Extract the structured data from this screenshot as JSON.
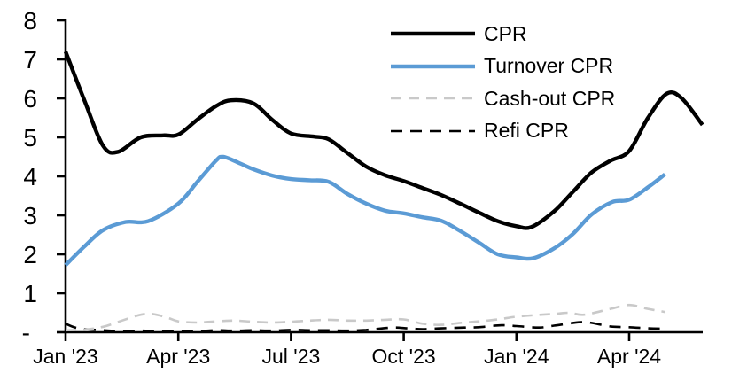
{
  "chart_data": {
    "type": "line",
    "title": "",
    "background": "#ffffff",
    "grid": "off",
    "y_axis": {
      "min": 0,
      "max": 8,
      "tick_step": 1,
      "tick_labels_top_to_bottom": [
        "8",
        "7",
        "6",
        "5",
        "4",
        "3",
        "2",
        "1",
        "-"
      ],
      "zero_label": "-"
    },
    "x_axis": {
      "unit": "month",
      "tick_labels": [
        "Jan '23",
        "Apr '23",
        "Jul '23",
        "Oct '23",
        "Jan '24",
        "Apr '24"
      ],
      "tick_month_indices": [
        0,
        3,
        6,
        9,
        12,
        15
      ]
    },
    "legend": {
      "position": "top-right",
      "entries": [
        "CPR",
        "Turnover CPR",
        "Cash-out CPR",
        "Refi CPR"
      ]
    },
    "series": [
      {
        "name": "CPR",
        "color": "#000000",
        "line_style": "solid",
        "points": [
          [
            0,
            7.2
          ],
          [
            0.5,
            5.95
          ],
          [
            1,
            4.78
          ],
          [
            1.4,
            4.63
          ],
          [
            2,
            5.0
          ],
          [
            2.6,
            5.05
          ],
          [
            3,
            5.07
          ],
          [
            3.5,
            5.45
          ],
          [
            4,
            5.8
          ],
          [
            4.4,
            5.95
          ],
          [
            5,
            5.87
          ],
          [
            5.5,
            5.45
          ],
          [
            6,
            5.1
          ],
          [
            6.6,
            5.02
          ],
          [
            7,
            4.95
          ],
          [
            7.5,
            4.6
          ],
          [
            8,
            4.25
          ],
          [
            8.5,
            4.03
          ],
          [
            9,
            3.88
          ],
          [
            9.5,
            3.7
          ],
          [
            10,
            3.52
          ],
          [
            10.5,
            3.3
          ],
          [
            11,
            3.07
          ],
          [
            11.5,
            2.85
          ],
          [
            12,
            2.72
          ],
          [
            12.4,
            2.7
          ],
          [
            13,
            3.1
          ],
          [
            13.5,
            3.6
          ],
          [
            14,
            4.1
          ],
          [
            14.5,
            4.4
          ],
          [
            15,
            4.65
          ],
          [
            15.5,
            5.5
          ],
          [
            16,
            6.12
          ],
          [
            16.4,
            6.0
          ],
          [
            16.95,
            5.32
          ]
        ]
      },
      {
        "name": "Turnover CPR",
        "color": "#5b9bd5",
        "line_style": "solid",
        "points": [
          [
            0,
            1.72
          ],
          [
            0.5,
            2.2
          ],
          [
            1,
            2.62
          ],
          [
            1.6,
            2.83
          ],
          [
            2.2,
            2.85
          ],
          [
            3,
            3.3
          ],
          [
            3.5,
            3.85
          ],
          [
            4,
            4.4
          ],
          [
            4.2,
            4.5
          ],
          [
            4.6,
            4.35
          ],
          [
            5,
            4.18
          ],
          [
            5.5,
            4.02
          ],
          [
            6,
            3.93
          ],
          [
            6.5,
            3.9
          ],
          [
            7,
            3.86
          ],
          [
            7.5,
            3.55
          ],
          [
            8,
            3.3
          ],
          [
            8.5,
            3.12
          ],
          [
            9,
            3.05
          ],
          [
            9.5,
            2.95
          ],
          [
            10,
            2.86
          ],
          [
            10.5,
            2.6
          ],
          [
            11,
            2.3
          ],
          [
            11.5,
            2.0
          ],
          [
            12,
            1.92
          ],
          [
            12.45,
            1.9
          ],
          [
            13,
            2.15
          ],
          [
            13.5,
            2.52
          ],
          [
            14,
            3.02
          ],
          [
            14.55,
            3.34
          ],
          [
            15,
            3.4
          ],
          [
            15.5,
            3.72
          ],
          [
            15.95,
            4.05
          ]
        ]
      },
      {
        "name": "Cash-out CPR",
        "color": "#c9c9c9",
        "line_style": "dashed",
        "points": [
          [
            0,
            0.05
          ],
          [
            0.5,
            0.07
          ],
          [
            1,
            0.14
          ],
          [
            1.5,
            0.3
          ],
          [
            2,
            0.45
          ],
          [
            2.3,
            0.47
          ],
          [
            2.7,
            0.38
          ],
          [
            3,
            0.28
          ],
          [
            3.5,
            0.25
          ],
          [
            4,
            0.28
          ],
          [
            4.5,
            0.3
          ],
          [
            5,
            0.27
          ],
          [
            5.5,
            0.25
          ],
          [
            6,
            0.27
          ],
          [
            6.5,
            0.3
          ],
          [
            7,
            0.32
          ],
          [
            7.5,
            0.3
          ],
          [
            8,
            0.3
          ],
          [
            8.5,
            0.32
          ],
          [
            9,
            0.33
          ],
          [
            9.5,
            0.22
          ],
          [
            10,
            0.19
          ],
          [
            10.5,
            0.24
          ],
          [
            11,
            0.28
          ],
          [
            11.5,
            0.33
          ],
          [
            12,
            0.4
          ],
          [
            12.5,
            0.44
          ],
          [
            13,
            0.47
          ],
          [
            13.4,
            0.5
          ],
          [
            13.8,
            0.45
          ],
          [
            14.5,
            0.6
          ],
          [
            15,
            0.7
          ],
          [
            15.5,
            0.6
          ],
          [
            15.95,
            0.52
          ]
        ]
      },
      {
        "name": "Refi CPR",
        "color": "#000000",
        "line_style": "dashed",
        "points": [
          [
            0,
            0.22
          ],
          [
            0.35,
            0.1
          ],
          [
            1,
            0.05
          ],
          [
            1.5,
            0.03
          ],
          [
            2,
            0.04
          ],
          [
            2.5,
            0.03
          ],
          [
            3,
            0.04
          ],
          [
            3.5,
            0.03
          ],
          [
            4,
            0.05
          ],
          [
            4.5,
            0.04
          ],
          [
            5,
            0.05
          ],
          [
            5.5,
            0.04
          ],
          [
            6,
            0.06
          ],
          [
            6.5,
            0.05
          ],
          [
            7,
            0.05
          ],
          [
            7.5,
            0.04
          ],
          [
            8,
            0.06
          ],
          [
            8.7,
            0.12
          ],
          [
            9.1,
            0.1
          ],
          [
            9.5,
            0.08
          ],
          [
            10,
            0.1
          ],
          [
            10.6,
            0.12
          ],
          [
            11,
            0.13
          ],
          [
            11.6,
            0.18
          ],
          [
            12,
            0.16
          ],
          [
            12.6,
            0.12
          ],
          [
            13,
            0.17
          ],
          [
            13.7,
            0.26
          ],
          [
            14,
            0.24
          ],
          [
            14.5,
            0.15
          ],
          [
            15,
            0.13
          ],
          [
            15.5,
            0.1
          ],
          [
            15.95,
            0.09
          ]
        ]
      }
    ]
  }
}
